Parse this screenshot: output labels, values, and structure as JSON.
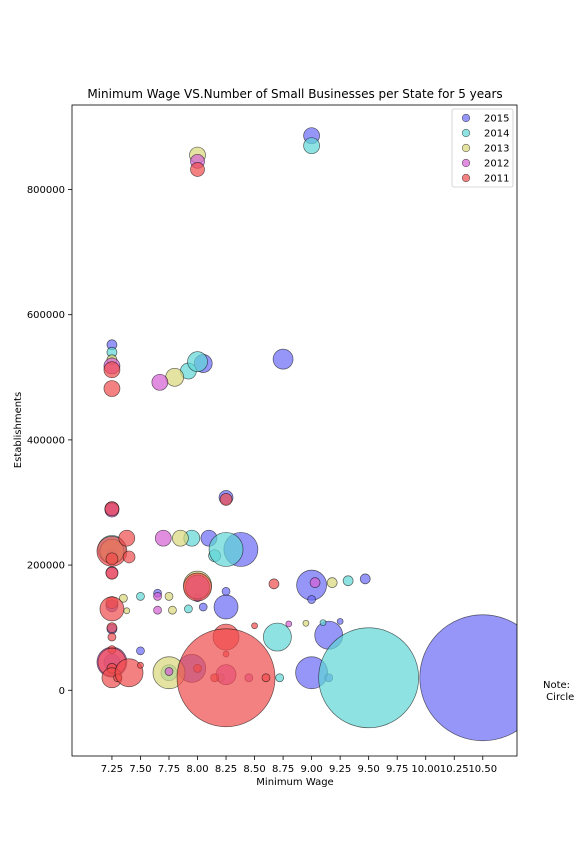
{
  "chart_data": {
    "type": "scatter",
    "title": "Minimum Wage VS.Number of Small Businesses per State for 5 years",
    "xlabel": "Minimum Wage",
    "ylabel": "Establishments",
    "xlim": [
      6.9,
      10.8
    ],
    "ylim": [
      -105000,
      935000
    ],
    "x_ticks": [
      "7.25",
      "7.50",
      "7.75",
      "8.00",
      "8.25",
      "8.50",
      "8.75",
      "9.00",
      "9.25",
      "9.50",
      "9.75",
      "10.00",
      "10.25",
      "10.50"
    ],
    "y_ticks": [
      0,
      200000,
      400000,
      600000,
      800000
    ],
    "y_tick_labels": [
      "0",
      "200000",
      "400000",
      "600000",
      "800000"
    ],
    "grid": false,
    "legend_position": "top-right",
    "note_text": "Note:\n Circle",
    "series": [
      {
        "name": "2015",
        "color": "#6a6af5",
        "points": [
          {
            "x": 7.25,
            "y": 552000,
            "s": 5
          },
          {
            "x": 7.25,
            "y": 290000,
            "s": 7
          },
          {
            "x": 7.25,
            "y": 218000,
            "s": 5
          },
          {
            "x": 7.25,
            "y": 135000,
            "s": 6
          },
          {
            "x": 7.25,
            "y": 98000,
            "s": 5
          },
          {
            "x": 7.25,
            "y": 45000,
            "s": 8
          },
          {
            "x": 7.5,
            "y": 63000,
            "s": 4
          },
          {
            "x": 7.65,
            "y": 155000,
            "s": 4
          },
          {
            "x": 8.0,
            "y": 148000,
            "s": 4
          },
          {
            "x": 8.05,
            "y": 133000,
            "s": 4
          },
          {
            "x": 8.1,
            "y": 243000,
            "s": 8
          },
          {
            "x": 8.05,
            "y": 522000,
            "s": 9
          },
          {
            "x": 8.25,
            "y": 308000,
            "s": 7
          },
          {
            "x": 8.25,
            "y": 158000,
            "s": 4
          },
          {
            "x": 8.25,
            "y": 133000,
            "s": 12
          },
          {
            "x": 8.38,
            "y": 225000,
            "s": 17
          },
          {
            "x": 8.75,
            "y": 529000,
            "s": 10
          },
          {
            "x": 9.0,
            "y": 886000,
            "s": 8
          },
          {
            "x": 9.0,
            "y": 168000,
            "s": 15
          },
          {
            "x": 9.0,
            "y": 145000,
            "s": 4
          },
          {
            "x": 9.0,
            "y": 28000,
            "s": 16
          },
          {
            "x": 9.15,
            "y": 88000,
            "s": 14
          },
          {
            "x": 9.15,
            "y": 20000,
            "s": 4
          },
          {
            "x": 9.25,
            "y": 110000,
            "s": 3
          },
          {
            "x": 9.47,
            "y": 178000,
            "s": 5
          },
          {
            "x": 10.5,
            "y": 20000,
            "s": 63
          },
          {
            "x": 7.95,
            "y": 35000,
            "s": 14
          }
        ]
      },
      {
        "name": "2014",
        "color": "#5fd6d6",
        "points": [
          {
            "x": 7.25,
            "y": 540000,
            "s": 5
          },
          {
            "x": 7.25,
            "y": 225000,
            "s": 14
          },
          {
            "x": 7.5,
            "y": 150000,
            "s": 4
          },
          {
            "x": 7.75,
            "y": 28000,
            "s": 8
          },
          {
            "x": 7.92,
            "y": 510000,
            "s": 8
          },
          {
            "x": 7.92,
            "y": 130000,
            "s": 4
          },
          {
            "x": 7.95,
            "y": 243000,
            "s": 8
          },
          {
            "x": 8.0,
            "y": 525000,
            "s": 10
          },
          {
            "x": 8.15,
            "y": 215000,
            "s": 6
          },
          {
            "x": 8.25,
            "y": 225000,
            "s": 17
          },
          {
            "x": 8.7,
            "y": 85000,
            "s": 14
          },
          {
            "x": 8.72,
            "y": 20000,
            "s": 4
          },
          {
            "x": 9.0,
            "y": 870000,
            "s": 8
          },
          {
            "x": 9.1,
            "y": 108000,
            "s": 3
          },
          {
            "x": 9.32,
            "y": 175000,
            "s": 5
          },
          {
            "x": 9.5,
            "y": 20000,
            "s": 50
          }
        ]
      },
      {
        "name": "2013",
        "color": "#d9d77a",
        "points": [
          {
            "x": 7.25,
            "y": 528000,
            "s": 5
          },
          {
            "x": 7.25,
            "y": 222000,
            "s": 12
          },
          {
            "x": 7.35,
            "y": 147000,
            "s": 4
          },
          {
            "x": 7.38,
            "y": 127000,
            "s": 3
          },
          {
            "x": 7.75,
            "y": 28000,
            "s": 16
          },
          {
            "x": 7.75,
            "y": 150000,
            "s": 4
          },
          {
            "x": 7.78,
            "y": 128000,
            "s": 4
          },
          {
            "x": 7.8,
            "y": 500000,
            "s": 9
          },
          {
            "x": 7.85,
            "y": 243000,
            "s": 8
          },
          {
            "x": 8.0,
            "y": 168000,
            "s": 14
          },
          {
            "x": 8.0,
            "y": 855000,
            "s": 8
          },
          {
            "x": 8.95,
            "y": 107000,
            "s": 3
          },
          {
            "x": 9.18,
            "y": 172000,
            "s": 5
          },
          {
            "x": 8.2,
            "y": 20000,
            "s": 4
          }
        ]
      },
      {
        "name": "2012",
        "color": "#d45ed4",
        "points": [
          {
            "x": 7.25,
            "y": 518000,
            "s": 8
          },
          {
            "x": 7.25,
            "y": 288000,
            "s": 7
          },
          {
            "x": 7.25,
            "y": 188000,
            "s": 6
          },
          {
            "x": 7.25,
            "y": 45000,
            "s": 15
          },
          {
            "x": 7.65,
            "y": 150000,
            "s": 4
          },
          {
            "x": 7.65,
            "y": 128000,
            "s": 4
          },
          {
            "x": 7.67,
            "y": 492000,
            "s": 8
          },
          {
            "x": 7.7,
            "y": 243000,
            "s": 8
          },
          {
            "x": 7.75,
            "y": 30000,
            "s": 4
          },
          {
            "x": 8.0,
            "y": 845000,
            "s": 7
          },
          {
            "x": 8.0,
            "y": 165000,
            "s": 12
          },
          {
            "x": 8.25,
            "y": 25000,
            "s": 10
          },
          {
            "x": 8.45,
            "y": 20000,
            "s": 4
          },
          {
            "x": 8.8,
            "y": 106000,
            "s": 3
          },
          {
            "x": 9.03,
            "y": 172000,
            "s": 5
          }
        ]
      },
      {
        "name": "2011",
        "color": "#f04c4c",
        "points": [
          {
            "x": 7.25,
            "y": 512000,
            "s": 8
          },
          {
            "x": 7.25,
            "y": 482000,
            "s": 8
          },
          {
            "x": 7.25,
            "y": 290000,
            "s": 7
          },
          {
            "x": 7.25,
            "y": 222000,
            "s": 15
          },
          {
            "x": 7.25,
            "y": 210000,
            "s": 6
          },
          {
            "x": 7.25,
            "y": 187000,
            "s": 6
          },
          {
            "x": 7.25,
            "y": 140000,
            "s": 6
          },
          {
            "x": 7.25,
            "y": 130000,
            "s": 12
          },
          {
            "x": 7.25,
            "y": 100000,
            "s": 5
          },
          {
            "x": 7.25,
            "y": 85000,
            "s": 4
          },
          {
            "x": 7.25,
            "y": 65000,
            "s": 4
          },
          {
            "x": 7.25,
            "y": 45000,
            "s": 14
          },
          {
            "x": 7.25,
            "y": 35000,
            "s": 5
          },
          {
            "x": 7.25,
            "y": 20000,
            "s": 10
          },
          {
            "x": 7.3,
            "y": 20000,
            "s": 4
          },
          {
            "x": 7.38,
            "y": 243000,
            "s": 8
          },
          {
            "x": 7.4,
            "y": 213000,
            "s": 6
          },
          {
            "x": 7.4,
            "y": 28000,
            "s": 14
          },
          {
            "x": 7.5,
            "y": 40000,
            "s": 3
          },
          {
            "x": 8.0,
            "y": 832000,
            "s": 7
          },
          {
            "x": 8.0,
            "y": 165000,
            "s": 14
          },
          {
            "x": 8.0,
            "y": 35000,
            "s": 4
          },
          {
            "x": 8.15,
            "y": 20000,
            "s": 4
          },
          {
            "x": 8.25,
            "y": 305000,
            "s": 6
          },
          {
            "x": 8.25,
            "y": 85000,
            "s": 13
          },
          {
            "x": 8.25,
            "y": 58000,
            "s": 3
          },
          {
            "x": 8.25,
            "y": 20000,
            "s": 49
          },
          {
            "x": 8.5,
            "y": 103000,
            "s": 3
          },
          {
            "x": 8.6,
            "y": 20000,
            "s": 4
          },
          {
            "x": 8.67,
            "y": 170000,
            "s": 5
          }
        ]
      }
    ]
  }
}
